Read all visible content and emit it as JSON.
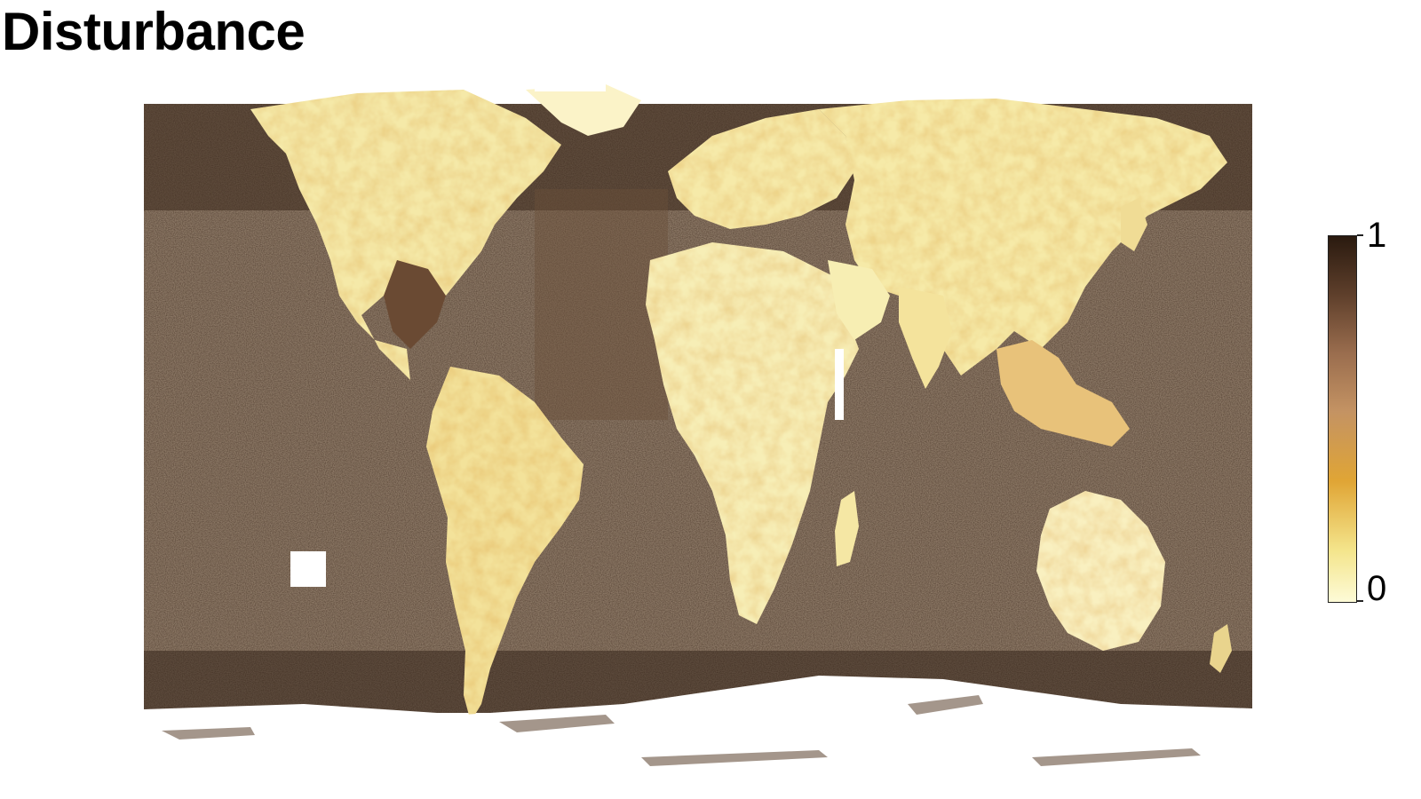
{
  "title": "Disturbance",
  "map": {
    "projection": "equirectangular",
    "extent": "global",
    "palette": {
      "low": "#fdfbd7",
      "mid_low": "#f4e58c",
      "mid": "#e0a535",
      "mid_high": "#c49363",
      "high": "#5e3f2b",
      "max": "#2a1a0f",
      "no_data": "#ffffff"
    }
  },
  "legend": {
    "min_label": "0",
    "max_label": "1",
    "min": 0,
    "max": 1,
    "placement": "right"
  }
}
